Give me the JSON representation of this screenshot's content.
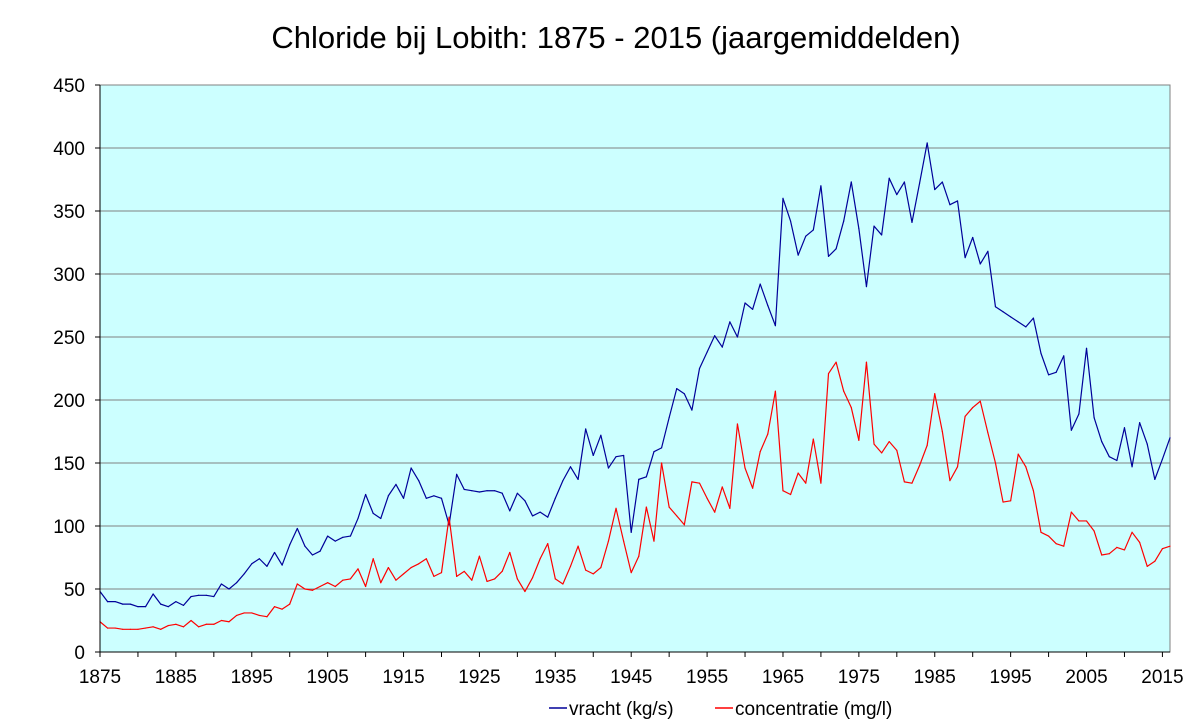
{
  "chart_data": {
    "type": "line",
    "title": "Chloride bij Lobith: 1875 - 2015 (jaargemiddelden)",
    "xlabel": "",
    "ylabel": "",
    "xlim": [
      1875,
      2016
    ],
    "ylim": [
      0,
      450
    ],
    "y_ticks": [
      0,
      50,
      100,
      150,
      200,
      250,
      300,
      350,
      400,
      450
    ],
    "x_ticks": [
      1875,
      1885,
      1895,
      1905,
      1915,
      1925,
      1935,
      1945,
      1955,
      1965,
      1975,
      1985,
      1995,
      2005,
      2015
    ],
    "grid": "horizontal",
    "plot_background": "#ccffff",
    "legend_position": "bottom",
    "x": [
      1875,
      1876,
      1877,
      1878,
      1879,
      1880,
      1881,
      1882,
      1883,
      1884,
      1885,
      1886,
      1887,
      1888,
      1889,
      1890,
      1891,
      1892,
      1893,
      1894,
      1895,
      1896,
      1897,
      1898,
      1899,
      1900,
      1901,
      1902,
      1903,
      1904,
      1905,
      1906,
      1907,
      1908,
      1909,
      1910,
      1911,
      1912,
      1913,
      1914,
      1915,
      1916,
      1917,
      1918,
      1919,
      1920,
      1921,
      1922,
      1923,
      1924,
      1925,
      1926,
      1927,
      1928,
      1929,
      1930,
      1931,
      1932,
      1933,
      1934,
      1935,
      1936,
      1937,
      1938,
      1939,
      1940,
      1941,
      1942,
      1943,
      1944,
      1945,
      1946,
      1947,
      1948,
      1949,
      1950,
      1951,
      1952,
      1953,
      1954,
      1955,
      1956,
      1957,
      1958,
      1959,
      1960,
      1961,
      1962,
      1963,
      1964,
      1965,
      1966,
      1967,
      1968,
      1969,
      1970,
      1971,
      1972,
      1973,
      1974,
      1975,
      1976,
      1977,
      1978,
      1979,
      1980,
      1981,
      1982,
      1983,
      1984,
      1985,
      1986,
      1987,
      1988,
      1989,
      1990,
      1991,
      1992,
      1993,
      1994,
      1995,
      1996,
      1997,
      1998,
      1999,
      2000,
      2001,
      2002,
      2003,
      2004,
      2005,
      2006,
      2007,
      2008,
      2009,
      2010,
      2011,
      2012,
      2013,
      2014,
      2015,
      2016
    ],
    "series": [
      {
        "name": "vracht (kg/s)",
        "color": "#000099",
        "values": [
          48,
          40,
          40,
          38,
          38,
          36,
          36,
          46,
          38,
          36,
          40,
          37,
          44,
          45,
          45,
          44,
          54,
          50,
          55,
          62,
          70,
          74,
          68,
          79,
          69,
          85,
          98,
          84,
          77,
          80,
          92,
          88,
          91,
          92,
          106,
          125,
          110,
          106,
          124,
          133,
          122,
          146,
          136,
          122,
          124,
          122,
          101,
          141,
          129,
          128,
          127,
          128,
          128,
          126,
          112,
          126,
          120,
          108,
          111,
          107,
          122,
          136,
          147,
          137,
          177,
          156,
          172,
          146,
          155,
          156,
          95,
          137,
          139,
          159,
          162,
          186,
          209,
          205,
          192,
          225,
          238,
          251,
          242,
          262,
          250,
          277,
          272,
          292,
          275,
          259,
          360,
          342,
          315,
          330,
          335,
          370,
          314,
          320,
          342,
          373,
          336,
          290,
          338,
          331,
          376,
          363,
          373,
          341,
          372,
          404,
          367,
          373,
          355,
          358,
          313,
          329,
          308,
          318,
          274,
          270,
          266,
          262,
          258,
          265,
          237,
          220,
          222,
          235,
          176,
          189,
          241,
          186,
          167,
          155,
          152,
          178,
          147,
          182,
          165,
          137,
          153,
          170
        ]
      },
      {
        "name": "concentratie (mg/l)",
        "color": "#ff0000",
        "values": [
          24,
          19,
          19,
          18,
          18,
          18,
          19,
          20,
          18,
          21,
          22,
          20,
          25,
          20,
          22,
          22,
          25,
          24,
          29,
          31,
          31,
          29,
          28,
          36,
          34,
          38,
          54,
          50,
          49,
          52,
          55,
          52,
          57,
          58,
          66,
          52,
          74,
          55,
          67,
          57,
          62,
          67,
          70,
          74,
          60,
          63,
          107,
          60,
          64,
          57,
          76,
          56,
          58,
          64,
          79,
          58,
          48,
          59,
          74,
          86,
          58,
          54,
          68,
          84,
          65,
          62,
          67,
          88,
          114,
          88,
          63,
          76,
          115,
          88,
          150,
          115,
          108,
          101,
          135,
          134,
          122,
          111,
          131,
          114,
          181,
          146,
          130,
          159,
          173,
          207,
          128,
          125,
          142,
          134,
          169,
          134,
          221,
          230,
          207,
          194,
          168,
          230,
          165,
          158,
          167,
          160,
          135,
          134,
          148,
          164,
          205,
          175,
          136,
          147,
          187,
          194,
          199,
          174,
          150,
          119,
          120,
          157,
          147,
          128,
          95,
          92,
          86,
          84,
          111,
          104,
          104,
          96,
          77,
          78,
          83,
          81,
          95,
          87,
          68,
          72,
          82,
          84
        ]
      }
    ]
  }
}
